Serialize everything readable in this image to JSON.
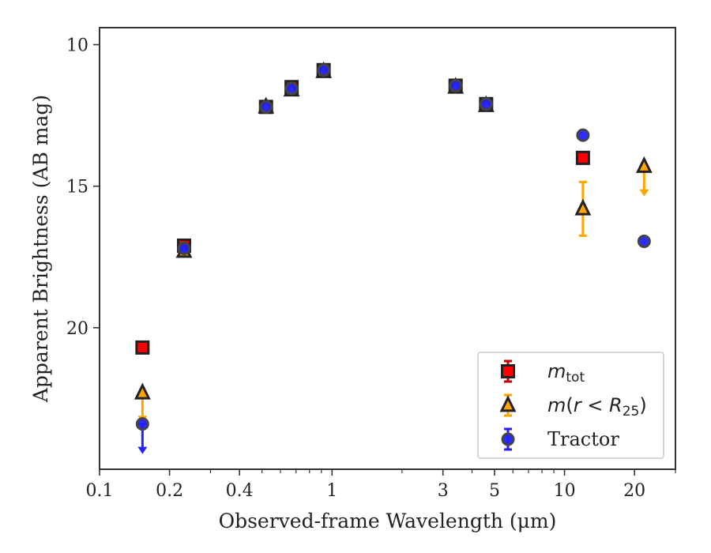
{
  "chart_data": {
    "type": "scatter",
    "xlabel": "Observed-frame Wavelength (μm)",
    "ylabel": "Apparent Brightness (AB mag)",
    "xscale": "log",
    "xlim": [
      0.1,
      30
    ],
    "ylim": [
      25.0,
      9.4
    ],
    "y_inverted": true,
    "x_ticks": [
      0.1,
      0.2,
      0.4,
      1,
      3,
      5,
      10,
      20
    ],
    "x_tick_labels": [
      "0.1",
      "0.2",
      "0.4",
      "1",
      "3",
      "5",
      "10",
      "20"
    ],
    "y_ticks": [
      10,
      15,
      20
    ],
    "y_tick_labels": [
      "10",
      "15",
      "20"
    ],
    "grid": false,
    "legend_position": "lower-right",
    "series": [
      {
        "name": "m_tot",
        "legend_label": "mtot",
        "marker": "square",
        "color": "#ff0000",
        "edge_color": "#222222",
        "error_color": "#cc0000",
        "points": [
          {
            "x": 0.153,
            "y": 20.7
          },
          {
            "x": 0.231,
            "y": 17.1
          },
          {
            "x": 0.52,
            "y": 12.2
          },
          {
            "x": 0.67,
            "y": 11.5
          },
          {
            "x": 0.92,
            "y": 10.9
          },
          {
            "x": 3.4,
            "y": 11.45
          },
          {
            "x": 4.6,
            "y": 12.1
          },
          {
            "x": 12.0,
            "y": 14.0
          }
        ]
      },
      {
        "name": "m(r < R25)",
        "legend_label": "m(r < R25)",
        "marker": "triangle",
        "color": "#ffa500",
        "edge_color": "#222222",
        "error_color": "#ffa500",
        "points": [
          {
            "x": 0.153,
            "y": 22.3,
            "upper_limit": true
          },
          {
            "x": 0.231,
            "y": 17.3
          },
          {
            "x": 0.52,
            "y": 12.2
          },
          {
            "x": 0.67,
            "y": 11.6
          },
          {
            "x": 0.92,
            "y": 10.95
          },
          {
            "x": 3.4,
            "y": 11.5
          },
          {
            "x": 4.6,
            "y": 12.15
          },
          {
            "x": 12.0,
            "y": 15.8,
            "yerr": 0.95
          },
          {
            "x": 22.0,
            "y": 14.3,
            "upper_limit": true
          }
        ]
      },
      {
        "name": "Tractor",
        "legend_label": "Tractor",
        "marker": "circle",
        "color": "#2222ff",
        "edge_color": "#444444",
        "error_color": "#2222ff",
        "points": [
          {
            "x": 0.153,
            "y": 23.4,
            "upper_limit": true
          },
          {
            "x": 0.231,
            "y": 17.2
          },
          {
            "x": 0.52,
            "y": 12.2
          },
          {
            "x": 0.67,
            "y": 11.55
          },
          {
            "x": 0.92,
            "y": 10.9
          },
          {
            "x": 3.4,
            "y": 11.45
          },
          {
            "x": 4.6,
            "y": 12.1
          },
          {
            "x": 12.0,
            "y": 13.2
          },
          {
            "x": 22.0,
            "y": 16.95
          }
        ]
      }
    ]
  }
}
